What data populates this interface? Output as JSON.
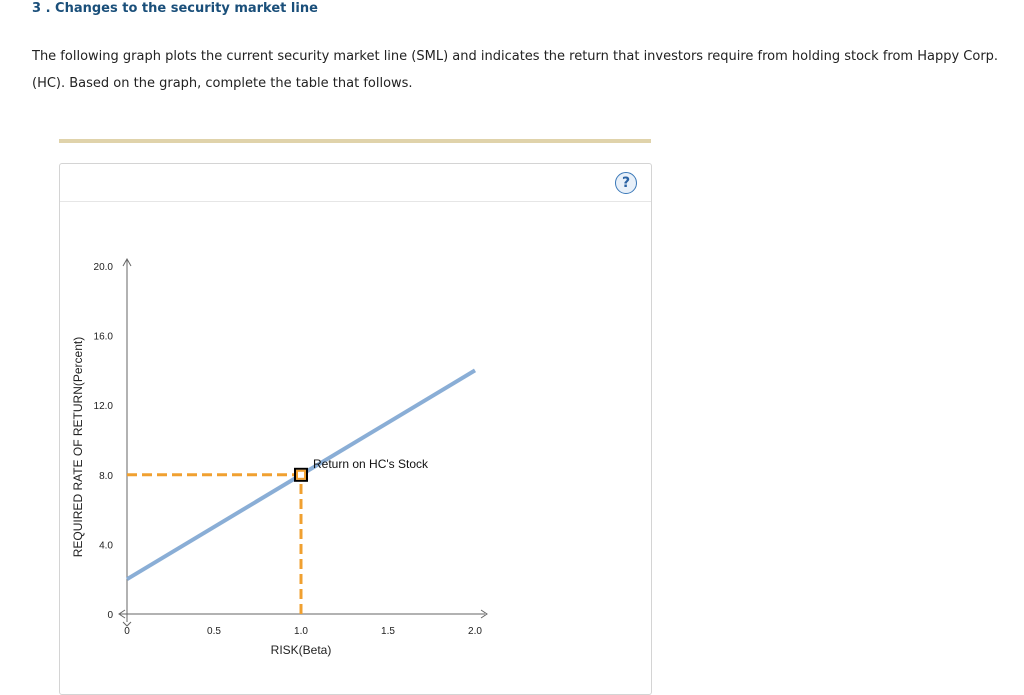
{
  "question": {
    "title": "3 . Changes to the security market line",
    "intro": "The following graph plots the current security market line (SML) and indicates the return that investors require from holding stock from Happy Corp. (HC). Based on the graph, complete the table that follows."
  },
  "panel": {
    "help_symbol": "?"
  },
  "chart_data": {
    "type": "line",
    "xlabel": "RISK(Beta)",
    "ylabel": "REQUIRED RATE OF RETURN(Percent)",
    "xlim": [
      0,
      2.0
    ],
    "ylim": [
      0,
      20.0
    ],
    "x_ticks": [
      "0",
      "0.5",
      "1.0",
      "1.5",
      "2.0"
    ],
    "y_ticks": [
      "0",
      "4.0",
      "8.0",
      "12.0",
      "16.0",
      "20.0"
    ],
    "grid": false,
    "series": [
      {
        "x": [
          0,
          2.0
        ],
        "y": [
          2.0,
          14.0
        ],
        "color": "#8aaed6"
      }
    ],
    "point": {
      "label": "Return on HC's Stock",
      "x": 1.0,
      "y": 8.0,
      "color": "#f0a030"
    },
    "guide_color": "#f0a030"
  }
}
